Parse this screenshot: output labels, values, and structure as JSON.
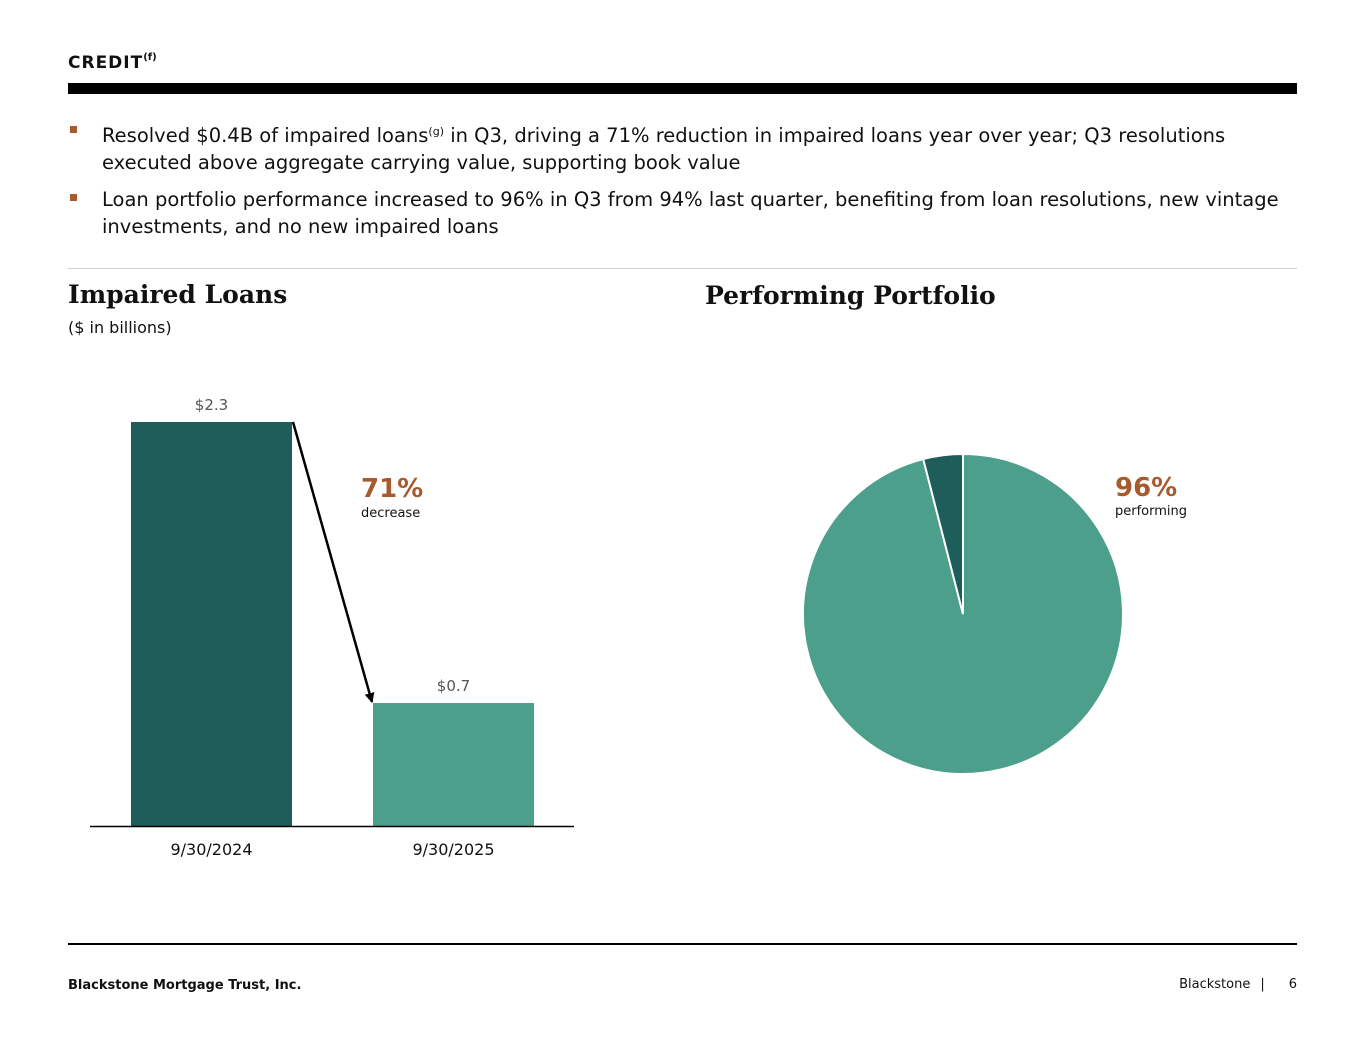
{
  "header": {
    "title": "CREDIT",
    "title_note": "(f)"
  },
  "bullets": [
    {
      "before": "Resolved $0.4B of impaired loans",
      "note": "(g)",
      "after": " in Q3, driving a 71% reduction in impaired loans year over year; Q3 resolutions executed above aggregate carrying value, supporting book value"
    },
    {
      "before": "Loan portfolio performance increased to 96% in Q3 from 94% last quarter, benefiting from loan resolutions, new vintage investments, and no new impaired loans",
      "note": "",
      "after": ""
    }
  ],
  "colors": {
    "dark_teal": "#1e5e5a",
    "light_teal": "#4c9f8b",
    "accent_orange": "#a65a2e",
    "bullet_square": "#a65a2e"
  },
  "chart_data": [
    {
      "type": "bar",
      "title": "Impaired Loans",
      "subtitle": "($ in billions)",
      "categories": [
        "9/30/2024",
        "9/30/2025"
      ],
      "values": [
        2.3,
        0.7
      ],
      "value_labels": [
        "$2.3",
        "$0.7"
      ],
      "ylim": [
        0,
        2.3
      ],
      "grid": false,
      "annotation": {
        "value": "71%",
        "label": "decrease"
      }
    },
    {
      "type": "pie",
      "title": "Performing Portfolio",
      "slices": [
        {
          "label": "performing",
          "value": 96
        },
        {
          "label": "",
          "value": 4
        }
      ],
      "annotation": {
        "value": "96%",
        "label": "performing"
      }
    }
  ],
  "footer": {
    "company": "Blackstone Mortgage Trust, Inc.",
    "brand": "Blackstone",
    "separator": "|",
    "page_number": "6"
  }
}
